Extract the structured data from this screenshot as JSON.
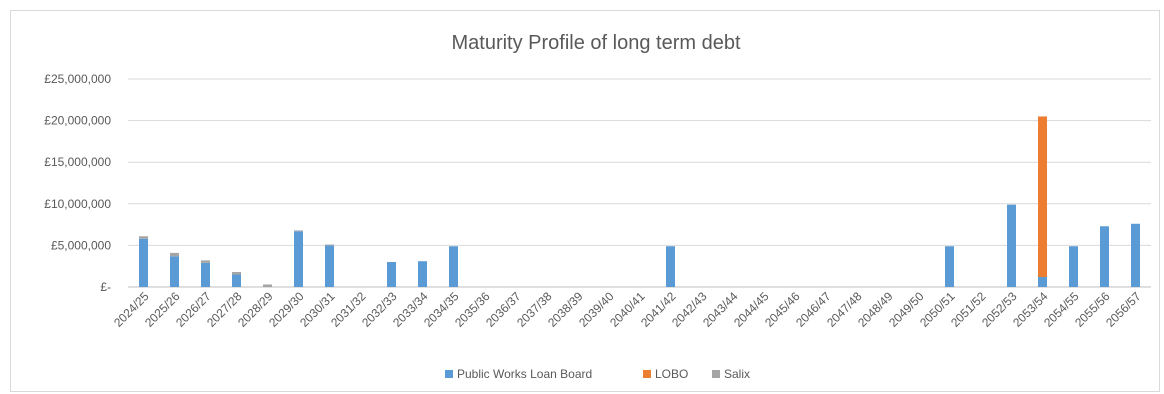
{
  "chart_data": {
    "type": "bar",
    "stacked": true,
    "title": "Maturity Profile of long term debt",
    "xlabel": "",
    "ylabel": "",
    "ylim": [
      0,
      25000000
    ],
    "yticks": [
      0,
      5000000,
      10000000,
      15000000,
      20000000,
      25000000
    ],
    "ytick_labels": [
      "£-",
      "£5,000,000",
      "£10,000,000",
      "£15,000,000",
      "£20,000,000",
      "£25,000,000"
    ],
    "grid": true,
    "legend_position": "bottom",
    "categories": [
      "2024/25",
      "2025/26",
      "2026/27",
      "2027/28",
      "2028/29",
      "2029/30",
      "2030/31",
      "2031/32",
      "2032/33",
      "2033/34",
      "2034/35",
      "2035/36",
      "2036/37",
      "2037/38",
      "2038/39",
      "2039/40",
      "2040/41",
      "2041/42",
      "2042/43",
      "2043/44",
      "2044/45",
      "2045/46",
      "2046/47",
      "2047/48",
      "2048/49",
      "2049/50",
      "2050/51",
      "2051/52",
      "2052/53",
      "2053/54",
      "2054/55",
      "2055/56",
      "2056/57"
    ],
    "series": [
      {
        "name": "Public Works Loan Board",
        "color": "#5B9BD5",
        "values": [
          5800000,
          3700000,
          2900000,
          1500000,
          0,
          6700000,
          5000000,
          0,
          3000000,
          3100000,
          4900000,
          0,
          0,
          0,
          0,
          0,
          0,
          4900000,
          0,
          0,
          0,
          0,
          0,
          0,
          0,
          0,
          4900000,
          0,
          9900000,
          1200000,
          4900000,
          7300000,
          7600000
        ]
      },
      {
        "name": "LOBO",
        "color": "#ED7D31",
        "values": [
          0,
          0,
          0,
          0,
          0,
          0,
          0,
          0,
          0,
          0,
          0,
          0,
          0,
          0,
          0,
          0,
          0,
          0,
          0,
          0,
          0,
          0,
          0,
          0,
          0,
          0,
          0,
          0,
          0,
          19300000,
          0,
          0,
          0
        ]
      },
      {
        "name": "Salix",
        "color": "#A5A5A5",
        "values": [
          300000,
          400000,
          300000,
          300000,
          300000,
          100000,
          100000,
          0,
          0,
          0,
          0,
          0,
          0,
          0,
          0,
          0,
          0,
          0,
          0,
          0,
          0,
          0,
          0,
          0,
          0,
          0,
          0,
          0,
          0,
          0,
          0,
          0,
          0
        ]
      }
    ]
  }
}
